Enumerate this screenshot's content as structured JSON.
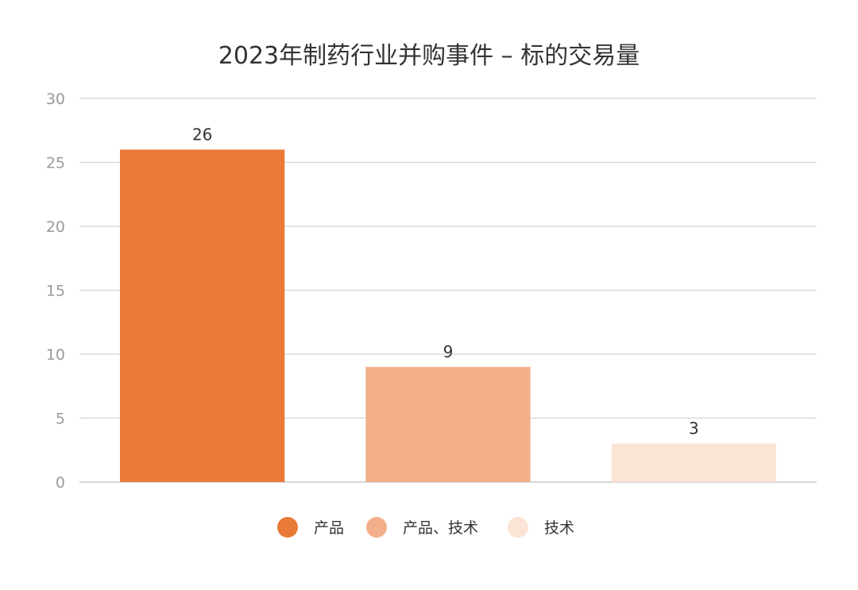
{
  "chart_data": {
    "type": "bar",
    "title": "2023年制药行业并购事件 – 标的交易量",
    "categories": [
      "产品",
      "产品、技术",
      "技术"
    ],
    "values": [
      26,
      9,
      3
    ],
    "colors": [
      "#e97a38",
      "#f2af89",
      "#fbe3d6"
    ],
    "ylim": [
      0,
      30
    ],
    "yticks": [
      0,
      5,
      10,
      15,
      20,
      25,
      30
    ],
    "grid": true,
    "legend_position": "bottom"
  }
}
